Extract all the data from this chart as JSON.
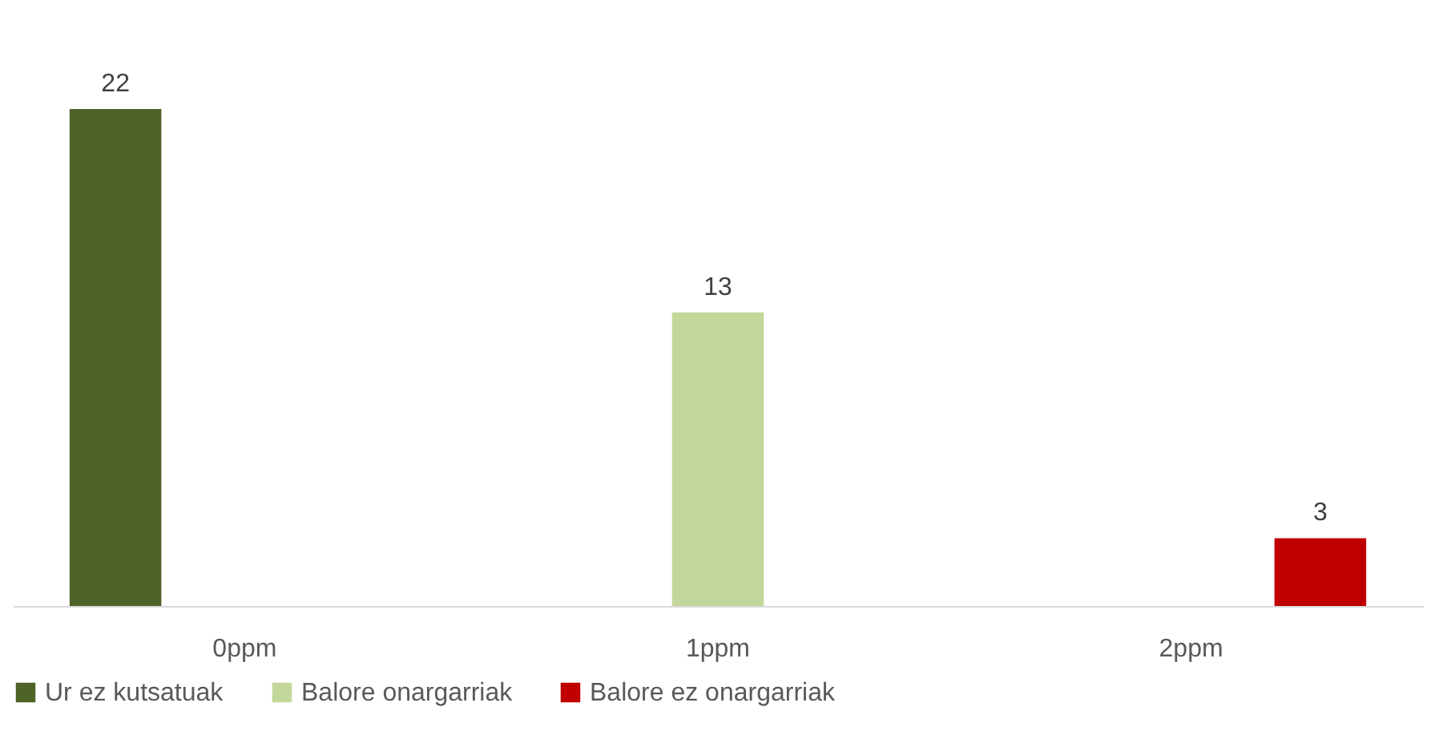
{
  "chart_data": {
    "type": "bar",
    "categories": [
      "0ppm",
      "1ppm",
      "2ppm"
    ],
    "series": [
      {
        "name": "Ur ez kutsatuak",
        "color": "#4f6228",
        "values": [
          22,
          null,
          null
        ]
      },
      {
        "name": "Balore onargarriak",
        "color": "#c4d79b",
        "values": [
          null,
          13,
          null
        ]
      },
      {
        "name": "Balore ez onargarriak",
        "color": "#c00000",
        "values": [
          null,
          null,
          3
        ]
      }
    ],
    "data_labels": true,
    "legend": "bottom"
  }
}
